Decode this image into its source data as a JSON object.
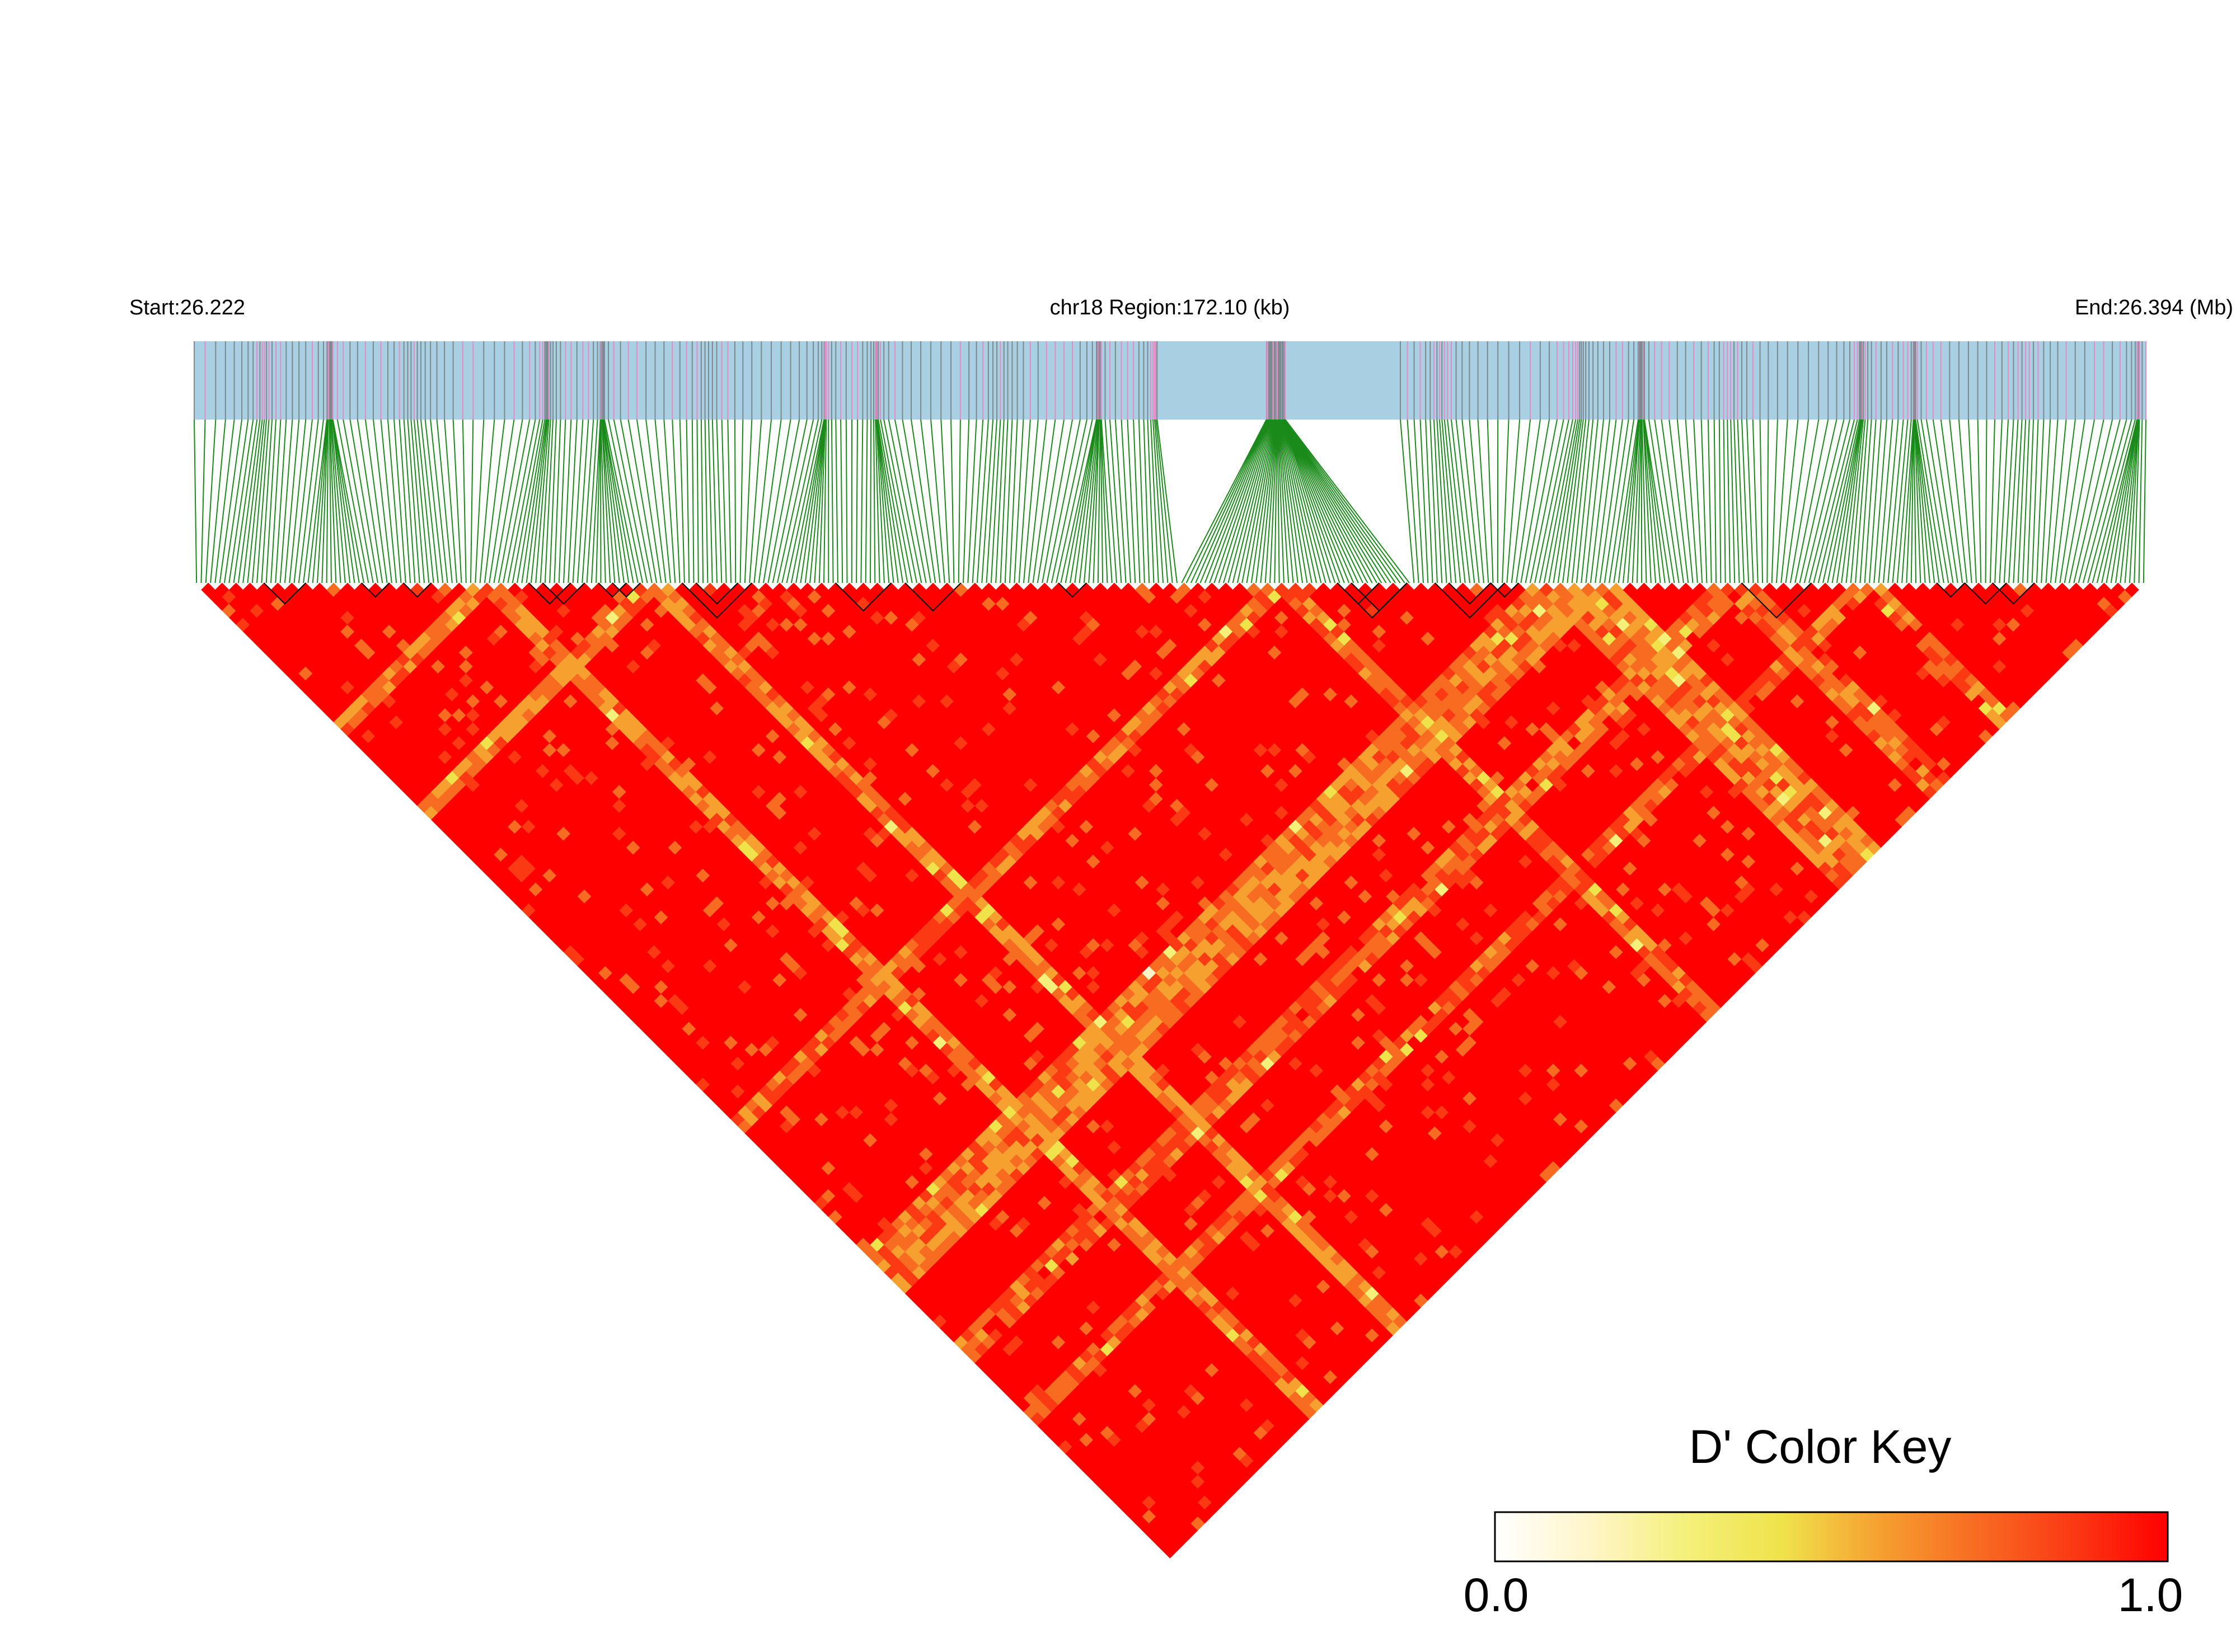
{
  "header": {
    "start_label": "Start:26.222",
    "region_label": "chr18 Region:172.10 (kb)",
    "end_label": "End:26.394 (Mb)"
  },
  "color_key": {
    "title": "D' Color Key",
    "min_label": "0.0",
    "max_label": "1.0",
    "colors": [
      "#ffffff",
      "#fff5c8",
      "#f4f07a",
      "#efe24a",
      "#f6a030",
      "#f86c22",
      "#fb3a14",
      "#ff0000"
    ]
  },
  "colors": {
    "track_background": "#a8cfe2",
    "snp_tick_grey": "#7a8a8f",
    "snp_tick_pink": "#e58bc4",
    "connector_lines": "#1a8a1a",
    "block_outline": "#000000"
  },
  "chart_data": {
    "type": "heatmap",
    "title": "",
    "chromosome": "chr18",
    "region_start_mb": 26.222,
    "region_end_mb": 26.394,
    "region_span_kb": 172.1,
    "statistic": "D'",
    "value_range": [
      0.0,
      1.0
    ],
    "n_snps_approx": 420,
    "dominant_value": 1.0,
    "low_value_bands": [
      {
        "anchor_position_mb": 26.247,
        "typical_value": 0.5
      },
      {
        "anchor_position_mb": 26.262,
        "typical_value": 0.5
      },
      {
        "anchor_position_mb": 26.317,
        "typical_value": 0.55
      },
      {
        "anchor_position_mb": 26.341,
        "typical_value": 0.55
      },
      {
        "anchor_position_mb": 26.345,
        "typical_value": 0.5
      },
      {
        "anchor_position_mb": 26.357,
        "typical_value": 0.6
      },
      {
        "anchor_position_mb": 26.369,
        "typical_value": 0.6
      }
    ],
    "haplotype_block_count_approx": 22
  }
}
